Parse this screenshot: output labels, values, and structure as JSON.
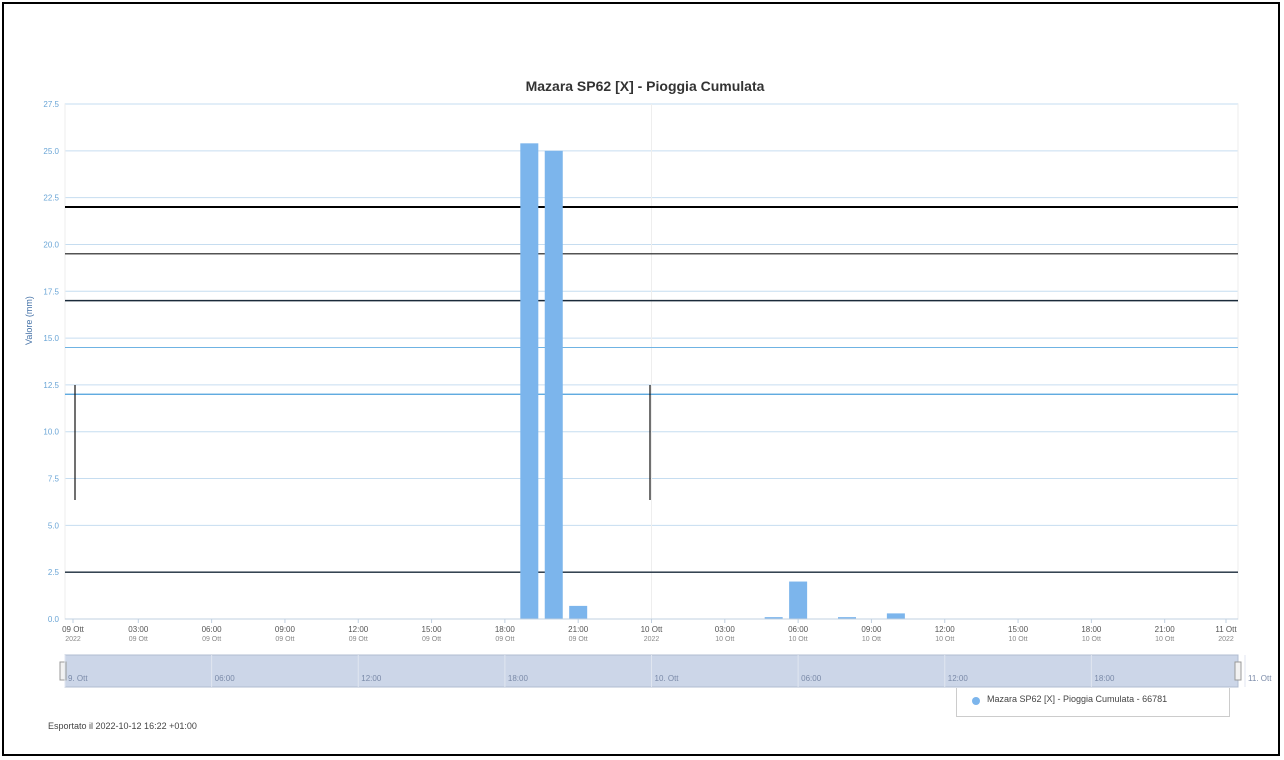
{
  "chart_data": {
    "type": "bar",
    "title": "Mazara SP62 [X] - Pioggia Cumulata",
    "ylabel": "Valore (mm)",
    "ylim": [
      0,
      27.5
    ],
    "y_ticks": [
      "0.0",
      "2.5",
      "5.0",
      "7.5",
      "10.0",
      "12.5",
      "15.0",
      "17.5",
      "20.0",
      "22.5",
      "25.0",
      "27.5"
    ],
    "x_range": [
      "2022-10-09 00:00",
      "2022-10-11 00:00"
    ],
    "x_ticks": [
      [
        "09 Ott",
        "2022"
      ],
      [
        "03:00",
        "09 Ott"
      ],
      [
        "06:00",
        "09 Ott"
      ],
      [
        "09:00",
        "09 Ott"
      ],
      [
        "12:00",
        "09 Ott"
      ],
      [
        "15:00",
        "09 Ott"
      ],
      [
        "18:00",
        "09 Ott"
      ],
      [
        "21:00",
        "09 Ott"
      ],
      [
        "10 Ott",
        "2022"
      ],
      [
        "03:00",
        "10 Ott"
      ],
      [
        "06:00",
        "10 Ott"
      ],
      [
        "09:00",
        "10 Ott"
      ],
      [
        "12:00",
        "10 Ott"
      ],
      [
        "15:00",
        "10 Ott"
      ],
      [
        "18:00",
        "10 Ott"
      ],
      [
        "21:00",
        "10 Ott"
      ],
      [
        "11 Ott",
        "2022"
      ]
    ],
    "series": [
      {
        "name": "Mazara SP62 [X] - Pioggia Cumulata - 66781",
        "color": "#7cb5ec",
        "points": [
          {
            "x": "2022-10-09 19:00",
            "y": 25.4
          },
          {
            "x": "2022-10-09 20:00",
            "y": 25.0
          },
          {
            "x": "2022-10-09 21:00",
            "y": 0.7
          },
          {
            "x": "2022-10-10 05:00",
            "y": 0.1
          },
          {
            "x": "2022-10-10 06:00",
            "y": 2.0
          },
          {
            "x": "2022-10-10 08:00",
            "y": 0.1
          },
          {
            "x": "2022-10-10 10:00",
            "y": 0.3
          }
        ]
      }
    ],
    "threshold_lines": [
      {
        "y": 22.0,
        "color": "#000000",
        "width": 2
      },
      {
        "y": 19.5,
        "color": "#1a1a1a",
        "width": 1.2
      },
      {
        "y": 17.0,
        "color": "#1a2a3a",
        "width": 1.4
      },
      {
        "y": 14.5,
        "color": "#6fb3e3",
        "width": 1
      },
      {
        "y": 12.0,
        "color": "#4a9fdc",
        "width": 1.2
      },
      {
        "y": 2.5,
        "color": "#1a2a3a",
        "width": 1.4
      }
    ],
    "navigator": {
      "labels": [
        "9. Ott",
        "06:00",
        "12:00",
        "18:00",
        "10. Ott",
        "06:00",
        "12:00",
        "18:00",
        "11. Ott"
      ]
    },
    "legend": "bottom-right",
    "grid": true
  },
  "footer": {
    "export_note": "Esportato il 2022-10-12 16:22 +01:00"
  }
}
